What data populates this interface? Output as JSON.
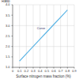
{
  "chart_data": {
    "type": "line",
    "x_label": "Surface nitrogen mass fraction (%)",
    "y_label": "Ratio",
    "x": [
      0.1,
      0.2,
      0.3,
      0.4,
      0.5,
      0.6,
      0.7,
      0.8
    ],
    "series": [
      {
        "name": "Curve",
        "color": "#5ab4e5",
        "values": [
          1.3,
          1.65,
          2.0,
          2.35,
          2.7,
          3.05,
          3.4,
          3.75
        ]
      }
    ],
    "xlim": [
      0,
      0.9
    ],
    "xticks": [
      0,
      0.1,
      0.2,
      0.3,
      0.4,
      0.5,
      0.6,
      0.7,
      0.8,
      0.9
    ],
    "ylim": [
      1,
      4
    ],
    "yticks": [
      {
        "value": 1,
        "label": "1.0"
      },
      {
        "value": 1.5,
        "label": "1.5"
      },
      {
        "value": 2,
        "label": "2.0"
      },
      {
        "value": 2.5,
        "label": "2.5"
      },
      {
        "value": 3,
        "label": "3.0"
      },
      {
        "value": 3.5,
        "label": "3.5"
      },
      {
        "value": 4,
        "label": "4.0"
      }
    ],
    "grid": true
  }
}
